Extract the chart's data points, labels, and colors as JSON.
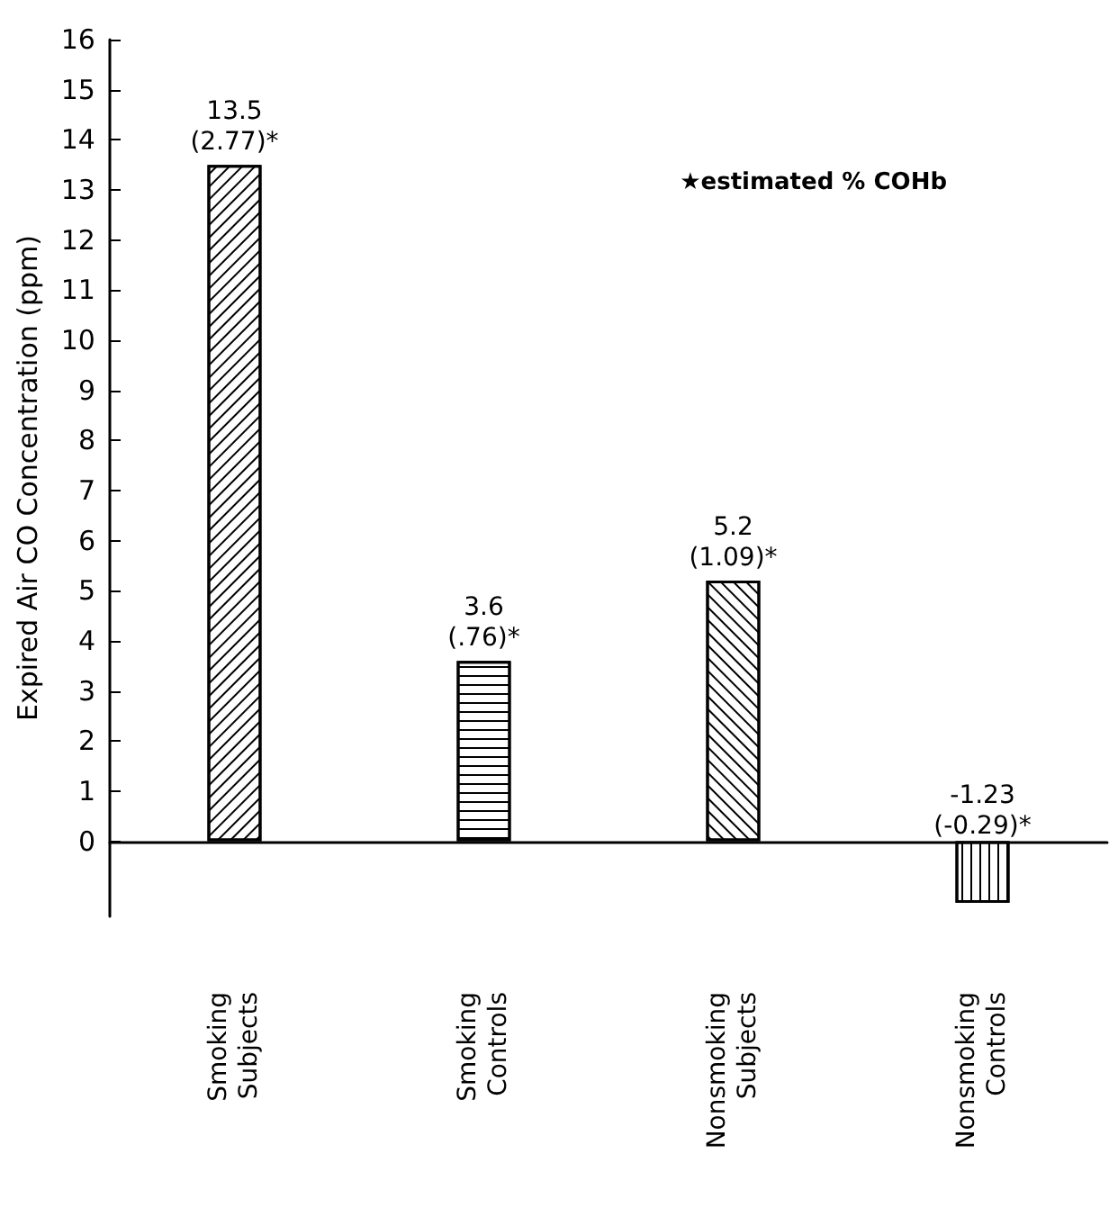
{
  "chart_data": {
    "type": "bar",
    "ylabel": "Expired Air CO Concentration (ppm)",
    "categories": [
      "Smoking Subjects",
      "Smoking Controls",
      "Nonsmoking Subjects",
      "Nonsmoking Controls"
    ],
    "values": [
      13.5,
      3.6,
      5.2,
      -1.23
    ],
    "value_labels": [
      "13.5\n(2.77)*",
      "3.6\n(.76)*",
      "5.2\n(1.09)*",
      "-1.23\n(-0.29)*"
    ],
    "color": "#000000",
    "ylim": [
      -1.5,
      16
    ],
    "yticks": [
      0,
      1,
      2,
      3,
      4,
      5,
      6,
      7,
      8,
      9,
      10,
      11,
      12,
      13,
      14,
      15,
      16
    ],
    "annotations": [
      "★estimated % COHb"
    ]
  }
}
